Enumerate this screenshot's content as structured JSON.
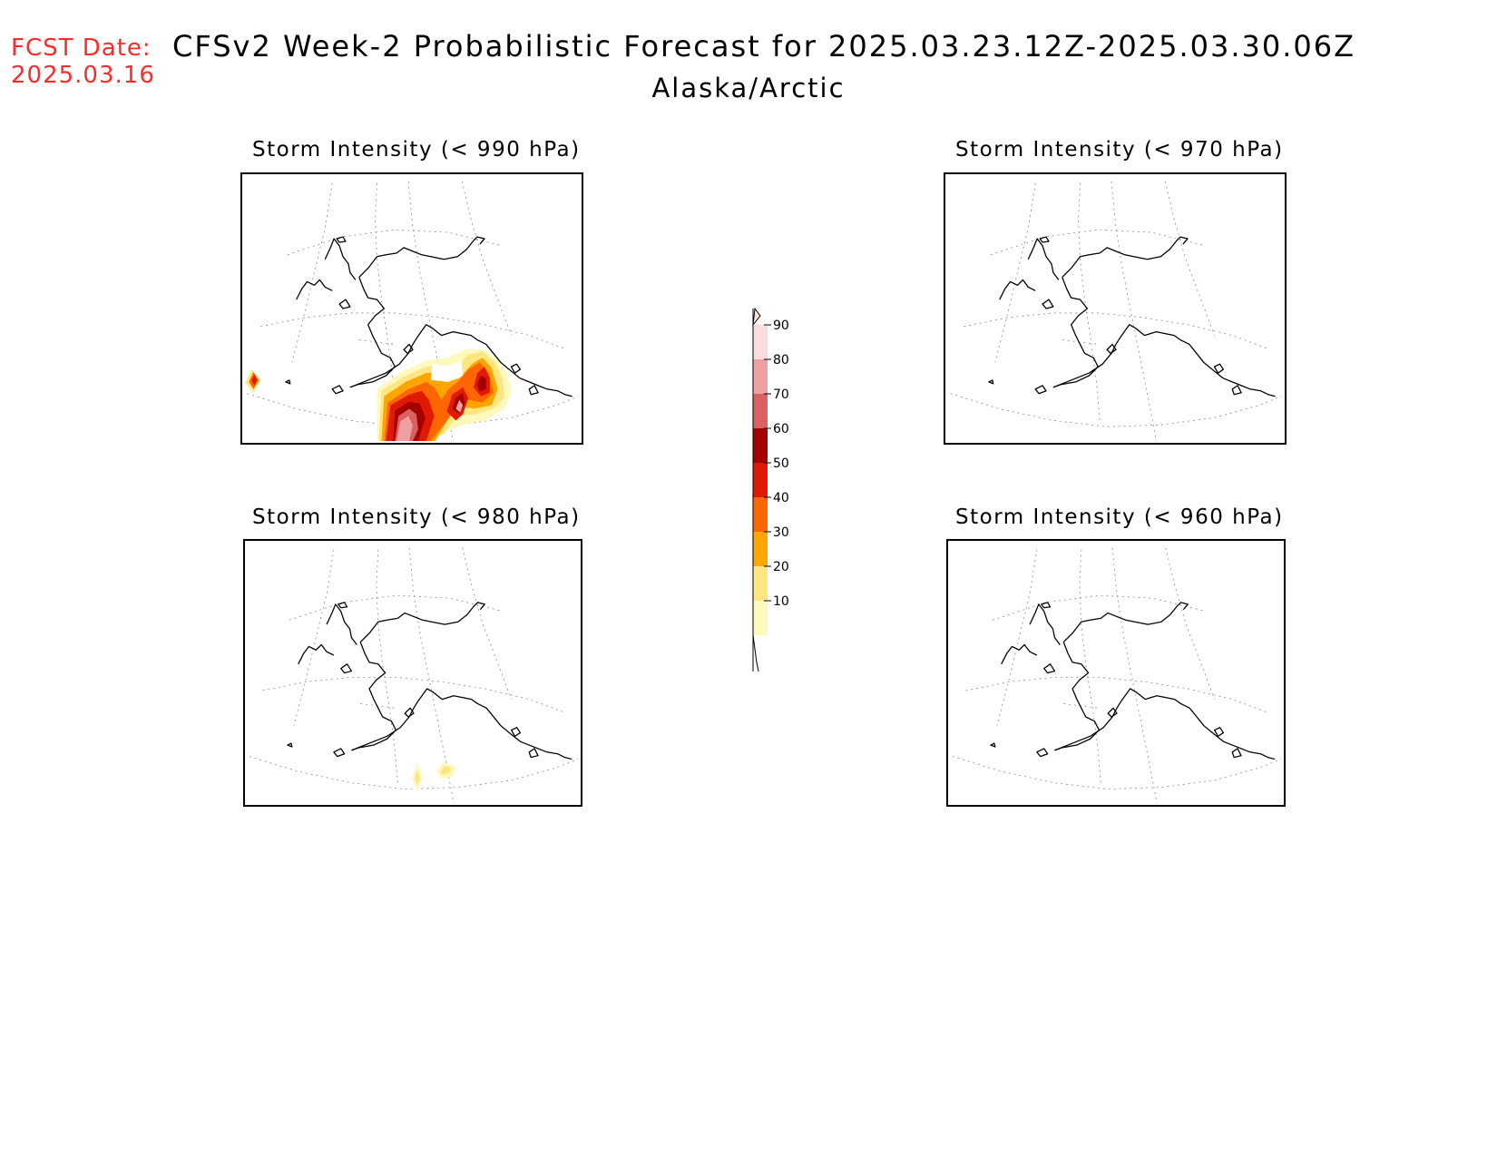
{
  "header": {
    "fcst_label": "FCST Date:",
    "fcst_date": "2025.03.16",
    "title": "CFSv2 Week-2 Probabilistic Forecast for 2025.03.23.12Z-2025.03.30.06Z",
    "subtitle": "Alaska/Arctic"
  },
  "panels": [
    {
      "title": "Storm Intensity (< 990 hPa)"
    },
    {
      "title": "Storm Intensity (< 970 hPa)"
    },
    {
      "title": "Storm Intensity (< 980 hPa)"
    },
    {
      "title": "Storm Intensity (< 960 hPa)"
    }
  ],
  "colorbar": {
    "ticks": [
      "10",
      "20",
      "30",
      "40",
      "50",
      "60",
      "70",
      "80",
      "90"
    ],
    "colors": [
      "#fff9bd",
      "#ffe680",
      "#ffa500",
      "#ff6600",
      "#e01a00",
      "#a50000",
      "#db6060",
      "#f0a0a0",
      "#fbdcdc"
    ]
  }
}
